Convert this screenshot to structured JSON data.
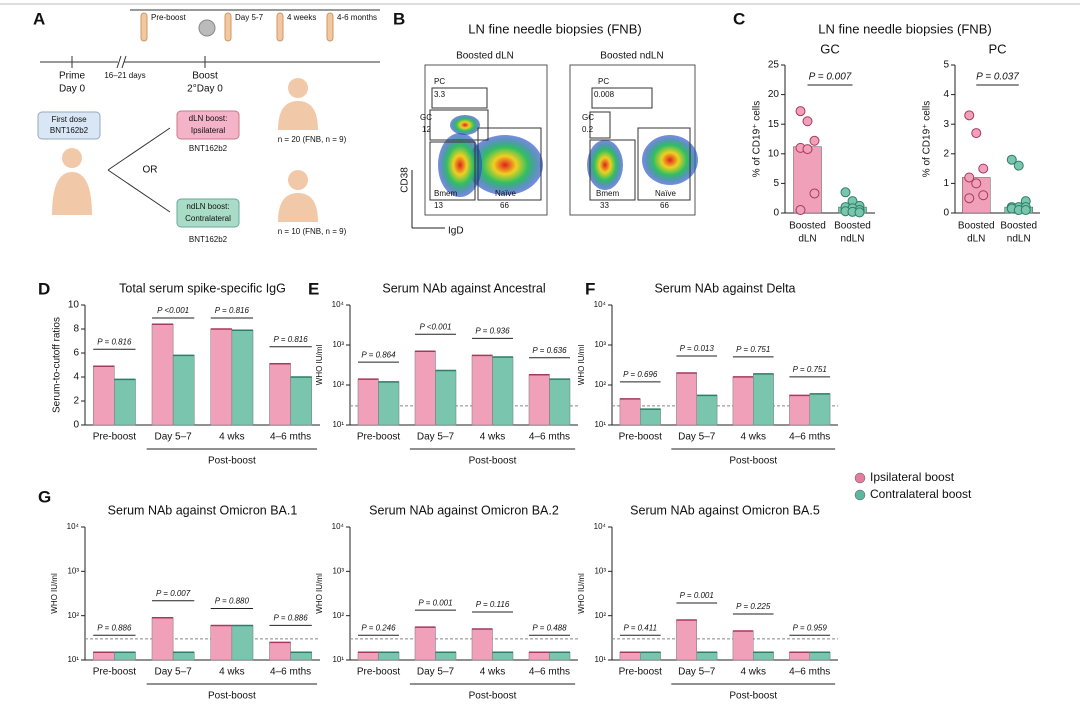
{
  "panel_letters": [
    "A",
    "B",
    "C",
    "D",
    "E",
    "F",
    "G"
  ],
  "schematic": {
    "timepoints": [
      "Pre-boost",
      "Day 5-7",
      "4 weeks",
      "4-6 months"
    ],
    "prime": [
      "Prime",
      "Day 0"
    ],
    "interval": "16–21 days",
    "boost": [
      "Boost",
      "2°Day 0"
    ],
    "first_dose": [
      "First dose",
      "BNT162b2"
    ],
    "or": "OR",
    "dln": [
      "dLN boost:",
      "Ipsilateral"
    ],
    "dln_vaccine": "BNT162b2",
    "dln_n": "n = 20 (FNB, n = 9)",
    "ndln": [
      "ndLN boost:",
      "Contralateral"
    ],
    "ndln_vaccine": "BNT162b2",
    "ndln_n": "n = 10 (FNB, n = 9)"
  },
  "flow": {
    "title": "LN fine needle biopsies (FNB)",
    "xlabel": "IgD",
    "ylabel": "CD38",
    "plots": [
      {
        "title": "Boosted dLN",
        "PC": 3.3,
        "GC": 12,
        "Bmem": 13,
        "Naive": 66
      },
      {
        "title": "Boosted ndLN",
        "PC": 0.008,
        "GC": 0.2,
        "Bmem": 33,
        "Naive": 66
      }
    ],
    "gate_names": [
      "PC",
      "GC",
      "Bmem",
      "Naïve"
    ]
  },
  "fnb_title": "LN fine needle biopsies (FNB)",
  "legend": [
    {
      "name": "Ipsilateral boost",
      "color": "#e47e9f"
    },
    {
      "name": "Contralateral boost",
      "color": "#5cb7a0"
    }
  ],
  "chart_data": [
    {
      "type": "dotbar",
      "title": "GC",
      "ylabel": "% of CD19⁺ cells",
      "categories": [
        [
          "Boosted",
          "dLN"
        ],
        [
          "Boosted",
          "ndLN"
        ]
      ],
      "colors": [
        "#f0a0b8",
        "#79c5ad"
      ],
      "values": [
        11.2,
        1.0
      ],
      "points": [
        [
          17.2,
          15.5,
          12.2,
          11,
          10.8,
          3.3,
          0.5
        ],
        [
          3.5,
          2,
          1.2,
          1,
          0.8,
          0.5,
          0.3,
          0.2,
          0.1
        ]
      ],
      "p_value": "P = 0.007",
      "ylim": [
        0,
        25
      ],
      "yticks": [
        0,
        5,
        10,
        15,
        20,
        25
      ]
    },
    {
      "type": "dotbar",
      "title": "PC",
      "ylabel": "% of CD19⁺ cells",
      "categories": [
        [
          "Boosted",
          "dLN"
        ],
        [
          "Boosted",
          "ndLN"
        ]
      ],
      "colors": [
        "#f0a0b8",
        "#79c5ad"
      ],
      "values": [
        1.2,
        0.2
      ],
      "points": [
        [
          3.3,
          2.7,
          1.5,
          1.2,
          1.0,
          0.6,
          0.5
        ],
        [
          1.8,
          1.6,
          0.4,
          0.2,
          0.2,
          0.2,
          0.15,
          0.1,
          0.1
        ]
      ],
      "p_value": "P = 0.037",
      "ylim": [
        0,
        5
      ],
      "yticks": [
        0,
        1,
        2,
        3,
        4,
        5
      ]
    },
    {
      "type": "grouped_bar",
      "title": "Total serum spike-specific IgG",
      "ylabel": "Serum-to-cutoff ratios",
      "categories": [
        "Pre-boost",
        "Day 5–7",
        "4 wks",
        "4–6 mths"
      ],
      "group_label": "Post-boost",
      "series": [
        {
          "name": "Ipsilateral boost",
          "color": "#f0a0b8",
          "values": [
            4.9,
            8.4,
            8.0,
            5.1
          ]
        },
        {
          "name": "Contralateral boost",
          "color": "#79c5ad",
          "values": [
            3.8,
            5.8,
            7.9,
            4.0
          ]
        }
      ],
      "p_values": [
        "P = 0.816",
        "P <0.001",
        "P = 0.816",
        "P = 0.816"
      ],
      "ylim": [
        0,
        10
      ],
      "yticks": [
        0,
        2,
        4,
        6,
        8,
        10
      ],
      "log": false
    },
    {
      "type": "grouped_bar",
      "title": "Serum NAb against Ancestral",
      "ylabel": "WHO IU/ml",
      "categories": [
        "Pre-boost",
        "Day 5–7",
        "4 wks",
        "4–6 mths"
      ],
      "group_label": "Post-boost",
      "series": [
        {
          "name": "Ipsilateral boost",
          "color": "#f0a0b8",
          "values": [
            140,
            700,
            550,
            180
          ]
        },
        {
          "name": "Contralateral boost",
          "color": "#79c5ad",
          "values": [
            120,
            230,
            500,
            140
          ]
        }
      ],
      "p_values": [
        "P = 0.864",
        "P <0.001",
        "P = 0.936",
        "P = 0.636"
      ],
      "ylim": [
        10,
        10000
      ],
      "yticks": [
        {
          "value": 10,
          "label": "10¹"
        },
        {
          "value": 100,
          "label": "10²"
        },
        {
          "value": 1000,
          "label": "10³"
        },
        {
          "value": 10000,
          "label": "10⁴"
        }
      ],
      "log": true,
      "cutoff": 30
    },
    {
      "type": "grouped_bar",
      "title": "Serum NAb against Delta",
      "ylabel": "WHO IU/ml",
      "categories": [
        "Pre-boost",
        "Day 5–7",
        "4 wks",
        "4–6 mths"
      ],
      "group_label": "Post-boost",
      "series": [
        {
          "name": "Ipsilateral boost",
          "color": "#f0a0b8",
          "values": [
            45,
            200,
            160,
            55
          ]
        },
        {
          "name": "Contralateral boost",
          "color": "#79c5ad",
          "values": [
            25,
            55,
            190,
            60
          ]
        }
      ],
      "p_values": [
        "P = 0.696",
        "P = 0.013",
        "P = 0.751",
        "P = 0.751"
      ],
      "ylim": [
        10,
        10000
      ],
      "yticks": [
        {
          "value": 10,
          "label": "10¹"
        },
        {
          "value": 100,
          "label": "10²"
        },
        {
          "value": 1000,
          "label": "10³"
        },
        {
          "value": 10000,
          "label": "10⁴"
        }
      ],
      "log": true,
      "cutoff": 30
    },
    {
      "type": "grouped_bar",
      "title": "Serum NAb against Omicron BA.1",
      "ylabel": "WHO IU/ml",
      "categories": [
        "Pre-boost",
        "Day 5–7",
        "4 wks",
        "4–6 mths"
      ],
      "group_label": "Post-boost",
      "series": [
        {
          "name": "Ipsilateral boost",
          "color": "#f0a0b8",
          "values": [
            15,
            90,
            60,
            25
          ]
        },
        {
          "name": "Contralateral boost",
          "color": "#79c5ad",
          "values": [
            15,
            15,
            60,
            15
          ]
        }
      ],
      "p_values": [
        "P = 0.886",
        "P = 0.007",
        "P = 0.880",
        "P = 0.886"
      ],
      "ylim": [
        10,
        10000
      ],
      "yticks": [
        {
          "value": 10,
          "label": "10¹"
        },
        {
          "value": 100,
          "label": "10²"
        },
        {
          "value": 1000,
          "label": "10³"
        },
        {
          "value": 10000,
          "label": "10⁴"
        }
      ],
      "log": true,
      "cutoff": 30
    },
    {
      "type": "grouped_bar",
      "title": "Serum NAb against Omicron BA.2",
      "ylabel": "WHO IU/ml",
      "categories": [
        "Pre-boost",
        "Day 5–7",
        "4 wks",
        "4–6 mths"
      ],
      "group_label": "Post-boost",
      "series": [
        {
          "name": "Ipsilateral boost",
          "color": "#f0a0b8",
          "values": [
            15,
            55,
            50,
            15
          ]
        },
        {
          "name": "Contralateral boost",
          "color": "#79c5ad",
          "values": [
            15,
            15,
            15,
            15
          ]
        }
      ],
      "p_values": [
        "P = 0.246",
        "P = 0.001",
        "P = 0.116",
        "P = 0.488"
      ],
      "ylim": [
        10,
        10000
      ],
      "yticks": [
        {
          "value": 10,
          "label": "10¹"
        },
        {
          "value": 100,
          "label": "10²"
        },
        {
          "value": 1000,
          "label": "10³"
        },
        {
          "value": 10000,
          "label": "10⁴"
        }
      ],
      "log": true,
      "cutoff": 30
    },
    {
      "type": "grouped_bar",
      "title": "Serum NAb against Omicron BA.5",
      "ylabel": "WHO IU/ml",
      "categories": [
        "Pre-boost",
        "Day 5–7",
        "4 wks",
        "4–6 mths"
      ],
      "group_label": "Post-boost",
      "series": [
        {
          "name": "Ipsilateral boost",
          "color": "#f0a0b8",
          "values": [
            15,
            80,
            45,
            15
          ]
        },
        {
          "name": "Contralateral boost",
          "color": "#79c5ad",
          "values": [
            15,
            15,
            15,
            15
          ]
        }
      ],
      "p_values": [
        "P = 0.411",
        "P = 0.001",
        "P = 0.225",
        "P = 0.959"
      ],
      "ylim": [
        10,
        10000
      ],
      "yticks": [
        {
          "value": 10,
          "label": "10¹"
        },
        {
          "value": 100,
          "label": "10²"
        },
        {
          "value": 1000,
          "label": "10³"
        },
        {
          "value": 10000,
          "label": "10⁴"
        }
      ],
      "log": true,
      "cutoff": 30
    }
  ]
}
